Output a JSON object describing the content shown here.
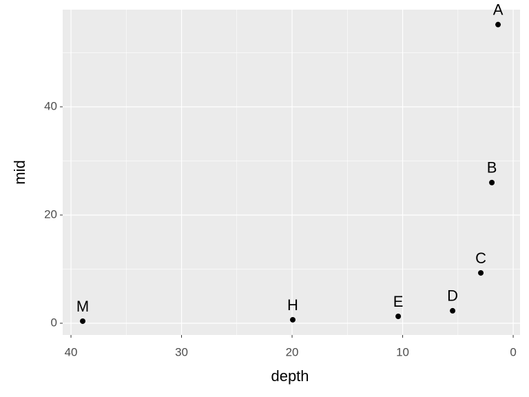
{
  "chart_data": {
    "type": "scatter",
    "x_label": "depth",
    "y_label": "mid",
    "x": [
      1.37,
      1.93,
      2.93,
      5.48,
      10.4,
      19.94,
      38.94
    ],
    "values": [
      55.2,
      26.0,
      9.3,
      2.3,
      1.27,
      0.64,
      0.38
    ],
    "labels": [
      "A",
      "B",
      "C",
      "D",
      "E",
      "H",
      "M"
    ],
    "color": "#000000",
    "xlim": [
      -0.62,
      40.75
    ],
    "x_reverse": true,
    "xticks": [
      0,
      10,
      20,
      30,
      40
    ],
    "ylim": [
      -2.17,
      57.96
    ],
    "yticks": [
      0,
      20,
      40
    ],
    "grid": true
  }
}
